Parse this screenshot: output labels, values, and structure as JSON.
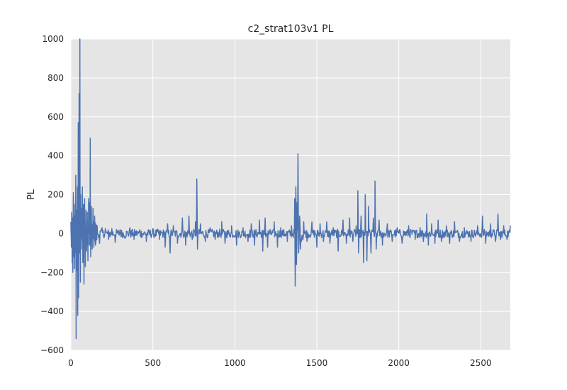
{
  "chart_data": {
    "type": "line",
    "title": "c2_strat103v1 PL",
    "xlabel": "",
    "ylabel": "PL",
    "xlim": [
      0,
      2680
    ],
    "ylim": [
      -600,
      1000
    ],
    "xticks": [
      0,
      500,
      1000,
      1500,
      2000,
      2500
    ],
    "yticks": [
      -600,
      -400,
      -200,
      0,
      200,
      400,
      600,
      800,
      1000
    ],
    "xtick_labels": [
      "0",
      "500",
      "1000",
      "1500",
      "2000",
      "2500"
    ],
    "ytick_labels": [
      "−600",
      "−400",
      "−200",
      "0",
      "200",
      "400",
      "600",
      "800",
      "1000"
    ],
    "grid": true,
    "background_color": "#e5e5e5",
    "grid_color": "#ffffff",
    "line_color": "#4c72b0",
    "series": [
      {
        "values_note": "",
        "spikes": [
          [
            0,
            60
          ],
          [
            3,
            -70
          ],
          [
            5,
            110
          ],
          [
            8,
            -150
          ],
          [
            10,
            80
          ],
          [
            12,
            -200
          ],
          [
            15,
            210
          ],
          [
            18,
            -120
          ],
          [
            20,
            90
          ],
          [
            23,
            -180
          ],
          [
            25,
            150
          ],
          [
            27,
            -100
          ],
          [
            30,
            300
          ],
          [
            32,
            -540
          ],
          [
            35,
            120
          ],
          [
            38,
            -190
          ],
          [
            40,
            240
          ],
          [
            42,
            -420
          ],
          [
            45,
            570
          ],
          [
            47,
            -330
          ],
          [
            50,
            720
          ],
          [
            52,
            -100
          ],
          [
            55,
            1000
          ],
          [
            58,
            -250
          ],
          [
            60,
            200
          ],
          [
            63,
            -80
          ],
          [
            66,
            130
          ],
          [
            70,
            240
          ],
          [
            73,
            -150
          ],
          [
            77,
            150
          ],
          [
            80,
            -260
          ],
          [
            84,
            180
          ],
          [
            88,
            -170
          ],
          [
            92,
            120
          ],
          [
            96,
            -90
          ],
          [
            100,
            110
          ],
          [
            104,
            -140
          ],
          [
            108,
            180
          ],
          [
            112,
            160
          ],
          [
            115,
            -60
          ],
          [
            118,
            490
          ],
          [
            121,
            -120
          ],
          [
            125,
            140
          ],
          [
            130,
            -80
          ],
          [
            135,
            130
          ],
          [
            140,
            -70
          ],
          [
            145,
            90
          ],
          [
            150,
            -60
          ],
          [
            160,
            40
          ],
          [
            175,
            -50
          ],
          [
            190,
            30
          ],
          [
            210,
            25
          ],
          [
            230,
            -30
          ],
          [
            250,
            25
          ],
          [
            270,
            -45
          ],
          [
            300,
            20
          ],
          [
            330,
            -25
          ],
          [
            360,
            30
          ],
          [
            385,
            -30
          ],
          [
            420,
            20
          ],
          [
            460,
            -40
          ],
          [
            500,
            25
          ],
          [
            540,
            -30
          ],
          [
            575,
            -70
          ],
          [
            590,
            50
          ],
          [
            605,
            -100
          ],
          [
            625,
            40
          ],
          [
            650,
            -50
          ],
          [
            680,
            80
          ],
          [
            700,
            -60
          ],
          [
            720,
            90
          ],
          [
            740,
            -30
          ],
          [
            760,
            60
          ],
          [
            768,
            280
          ],
          [
            772,
            -80
          ],
          [
            790,
            50
          ],
          [
            820,
            -40
          ],
          [
            850,
            30
          ],
          [
            880,
            -30
          ],
          [
            920,
            60
          ],
          [
            940,
            -50
          ],
          [
            980,
            40
          ],
          [
            1010,
            -60
          ],
          [
            1050,
            30
          ],
          [
            1080,
            -40
          ],
          [
            1100,
            50
          ],
          [
            1120,
            -60
          ],
          [
            1150,
            70
          ],
          [
            1170,
            -90
          ],
          [
            1185,
            80
          ],
          [
            1200,
            -70
          ],
          [
            1240,
            60
          ],
          [
            1260,
            -70
          ],
          [
            1280,
            30
          ],
          [
            1320,
            -40
          ],
          [
            1345,
            40
          ],
          [
            1365,
            180
          ],
          [
            1368,
            -270
          ],
          [
            1372,
            240
          ],
          [
            1376,
            -160
          ],
          [
            1380,
            160
          ],
          [
            1385,
            410
          ],
          [
            1389,
            -100
          ],
          [
            1395,
            90
          ],
          [
            1400,
            -80
          ],
          [
            1420,
            60
          ],
          [
            1440,
            -40
          ],
          [
            1470,
            60
          ],
          [
            1500,
            -70
          ],
          [
            1520,
            50
          ],
          [
            1540,
            -40
          ],
          [
            1560,
            60
          ],
          [
            1580,
            -50
          ],
          [
            1600,
            30
          ],
          [
            1630,
            -90
          ],
          [
            1660,
            70
          ],
          [
            1680,
            -50
          ],
          [
            1700,
            80
          ],
          [
            1720,
            -40
          ],
          [
            1740,
            40
          ],
          [
            1750,
            220
          ],
          [
            1755,
            -100
          ],
          [
            1770,
            90
          ],
          [
            1785,
            -150
          ],
          [
            1795,
            200
          ],
          [
            1805,
            -140
          ],
          [
            1815,
            140
          ],
          [
            1830,
            -100
          ],
          [
            1845,
            80
          ],
          [
            1855,
            270
          ],
          [
            1862,
            -80
          ],
          [
            1880,
            70
          ],
          [
            1900,
            -60
          ],
          [
            1930,
            50
          ],
          [
            1960,
            -40
          ],
          [
            1990,
            30
          ],
          [
            2020,
            -50
          ],
          [
            2060,
            40
          ],
          [
            2100,
            -30
          ],
          [
            2130,
            30
          ],
          [
            2150,
            -40
          ],
          [
            2170,
            100
          ],
          [
            2180,
            -60
          ],
          [
            2200,
            50
          ],
          [
            2220,
            -50
          ],
          [
            2240,
            70
          ],
          [
            2260,
            -40
          ],
          [
            2290,
            40
          ],
          [
            2310,
            -50
          ],
          [
            2340,
            60
          ],
          [
            2370,
            -40
          ],
          [
            2400,
            30
          ],
          [
            2440,
            -40
          ],
          [
            2480,
            40
          ],
          [
            2510,
            90
          ],
          [
            2530,
            -50
          ],
          [
            2560,
            50
          ],
          [
            2590,
            -40
          ],
          [
            2605,
            100
          ],
          [
            2620,
            -30
          ],
          [
            2640,
            40
          ],
          [
            2660,
            -30
          ],
          [
            2680,
            40
          ]
        ]
      }
    ]
  }
}
